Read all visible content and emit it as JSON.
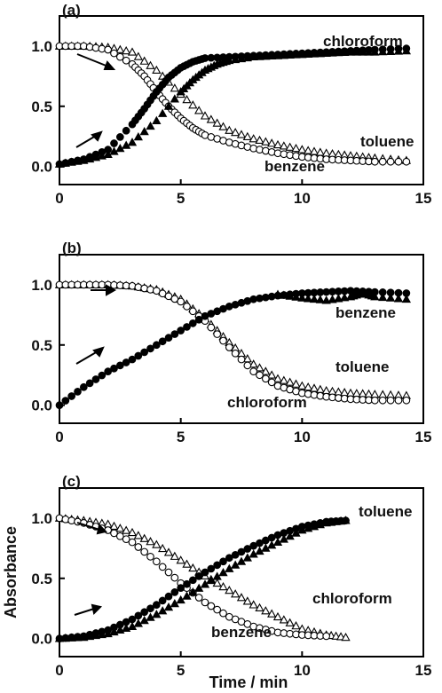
{
  "chart_data": [
    {
      "type": "scatter",
      "panel_label": "(a)",
      "xlim": [
        0,
        15
      ],
      "ylim": [
        -0.15,
        1.25
      ],
      "x_ticks": [
        "0",
        "5",
        "10",
        "15"
      ],
      "y_ticks": [
        "0.0",
        "0.5",
        "1.0"
      ],
      "xlabel": "",
      "ylabel": "",
      "series": [
        {
          "name": "chloroform",
          "marker": "filled-circle",
          "x": [
            0,
            1,
            2,
            3,
            3.5,
            4,
            4.5,
            5,
            5.5,
            6,
            7,
            8,
            9,
            10,
            11,
            12,
            13,
            14.3
          ],
          "y": [
            0.02,
            0.06,
            0.14,
            0.35,
            0.48,
            0.62,
            0.74,
            0.82,
            0.87,
            0.9,
            0.91,
            0.92,
            0.93,
            0.94,
            0.95,
            0.96,
            0.97,
            0.98
          ]
        },
        {
          "name": "",
          "marker": "filled-triangle",
          "x": [
            0,
            1,
            2,
            3,
            4,
            5,
            5.5,
            6,
            6.5,
            7,
            8,
            9,
            10,
            11,
            12,
            13,
            14.3
          ],
          "y": [
            0.02,
            0.05,
            0.1,
            0.2,
            0.38,
            0.62,
            0.72,
            0.8,
            0.85,
            0.88,
            0.91,
            0.92,
            0.93,
            0.94,
            0.95,
            0.95,
            0.96
          ]
        },
        {
          "name": "toluene",
          "marker": "open-triangle",
          "x": [
            0,
            1,
            2,
            3,
            4,
            5,
            6,
            7,
            8,
            9,
            10,
            11,
            12,
            13,
            14.3
          ],
          "y": [
            1.0,
            1.0,
            0.99,
            0.95,
            0.8,
            0.6,
            0.42,
            0.3,
            0.23,
            0.18,
            0.14,
            0.11,
            0.09,
            0.07,
            0.05
          ]
        },
        {
          "name": "benzene",
          "marker": "open-circle",
          "x": [
            0,
            1,
            2,
            3,
            3.5,
            4,
            4.5,
            5,
            5.5,
            6,
            7,
            8,
            9,
            10,
            11,
            12,
            13,
            14.3
          ],
          "y": [
            1.0,
            1.0,
            0.97,
            0.85,
            0.75,
            0.62,
            0.5,
            0.4,
            0.32,
            0.26,
            0.2,
            0.15,
            0.11,
            0.08,
            0.06,
            0.05,
            0.04,
            0.04
          ]
        }
      ]
    },
    {
      "type": "scatter",
      "panel_label": "(b)",
      "xlim": [
        0,
        15
      ],
      "ylim": [
        -0.15,
        1.25
      ],
      "x_ticks": [
        "0",
        "5",
        "10",
        "15"
      ],
      "y_ticks": [
        "0.0",
        "0.5",
        "1.0"
      ],
      "xlabel": "",
      "ylabel": "",
      "series": [
        {
          "name": "",
          "marker": "filled-circle",
          "x": [
            0,
            1,
            2,
            3,
            4,
            5,
            6,
            7,
            8,
            9,
            10,
            11,
            12,
            13,
            14.3
          ],
          "y": [
            0.0,
            0.15,
            0.28,
            0.38,
            0.5,
            0.62,
            0.74,
            0.82,
            0.88,
            0.91,
            0.93,
            0.94,
            0.95,
            0.94,
            0.93
          ]
        },
        {
          "name": "benzene",
          "marker": "filled-triangle",
          "x": [
            9,
            10,
            11,
            12,
            12.5,
            13,
            14.3
          ],
          "y": [
            0.92,
            0.89,
            0.87,
            0.9,
            0.93,
            0.9,
            0.88
          ]
        },
        {
          "name": "toluene",
          "marker": "open-triangle",
          "x": [
            0,
            1,
            2,
            3,
            4,
            5,
            6,
            7,
            8,
            9,
            10,
            11,
            12,
            13,
            14.3
          ],
          "y": [
            1.0,
            1.0,
            1.0,
            0.99,
            0.96,
            0.88,
            0.72,
            0.52,
            0.34,
            0.22,
            0.16,
            0.12,
            0.1,
            0.09,
            0.08
          ]
        },
        {
          "name": "chloroform",
          "marker": "open-circle",
          "x": [
            0,
            1,
            2,
            3,
            4,
            5,
            6,
            7,
            8,
            9,
            10,
            11,
            12,
            13,
            14.3
          ],
          "y": [
            1.0,
            1.0,
            1.0,
            0.99,
            0.95,
            0.86,
            0.7,
            0.48,
            0.28,
            0.16,
            0.1,
            0.07,
            0.05,
            0.04,
            0.04
          ]
        }
      ]
    },
    {
      "type": "scatter",
      "panel_label": "(c)",
      "xlim": [
        0,
        15
      ],
      "ylim": [
        -0.15,
        1.25
      ],
      "x_ticks": [
        "0",
        "5",
        "10",
        "15"
      ],
      "y_ticks": [
        "0.0",
        "0.5",
        "1.0"
      ],
      "xlabel": "Time / min",
      "ylabel": "Absorbance",
      "series": [
        {
          "name": "toluene",
          "marker": "filled-circle",
          "x": [
            0,
            1,
            2,
            3,
            4,
            5,
            6,
            7,
            8,
            9,
            10,
            11,
            11.8
          ],
          "y": [
            0.0,
            0.02,
            0.07,
            0.16,
            0.28,
            0.42,
            0.55,
            0.67,
            0.77,
            0.86,
            0.93,
            0.97,
            0.98
          ]
        },
        {
          "name": "",
          "marker": "filled-triangle",
          "x": [
            0,
            1,
            2,
            3,
            4,
            5,
            6,
            7,
            8,
            9,
            10,
            11,
            11.8
          ],
          "y": [
            0.0,
            0.01,
            0.04,
            0.1,
            0.2,
            0.32,
            0.45,
            0.58,
            0.7,
            0.8,
            0.9,
            0.96,
            0.98
          ]
        },
        {
          "name": "chloroform",
          "marker": "open-triangle",
          "x": [
            0,
            1,
            2,
            3,
            4,
            5,
            6,
            7,
            8,
            9,
            10,
            11,
            11.8
          ],
          "y": [
            1.0,
            0.98,
            0.95,
            0.88,
            0.78,
            0.65,
            0.52,
            0.4,
            0.28,
            0.18,
            0.08,
            0.03,
            0.01
          ]
        },
        {
          "name": "benzene",
          "marker": "open-circle",
          "x": [
            0,
            1,
            2,
            3,
            4,
            5,
            6,
            7,
            8,
            9,
            10,
            11
          ],
          "y": [
            1.0,
            0.96,
            0.9,
            0.8,
            0.64,
            0.46,
            0.3,
            0.18,
            0.1,
            0.05,
            0.03,
            0.02
          ]
        }
      ]
    }
  ]
}
